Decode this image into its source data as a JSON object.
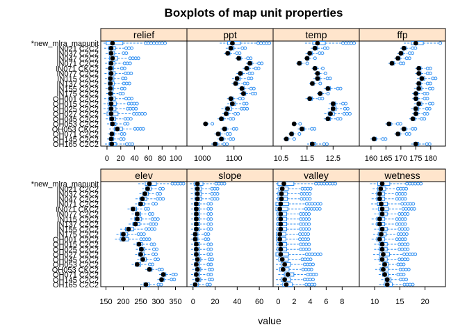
{
  "chart_data": {
    "type": "boxplot",
    "title": "Boxplots of map unit properties",
    "xlabel": "value",
    "colors": {
      "box": "#2b8cf0",
      "median": "#000000",
      "strip": "#ffe5cc",
      "frame": "#000000"
    },
    "categories": [
      "*new_mlra_mapunit",
      "IN021 C2C2",
      "IN037 C2C2",
      "IN047 C2C2",
      "IN071 C2C2",
      "IN071 CKC2",
      "IN077 C2C2",
      "IN115 C2C2",
      "IN137 C2C2",
      "IN155 C2C2",
      "IN175 C2C2",
      "OH001 C2C2",
      "OH015 C2C2",
      "OH025 C2C2",
      "OH027 C2C2",
      "OH045 C2C2",
      "OH053 C2C2",
      "OH053 CKC2",
      "OH071 C2C2",
      "OH145 C2C2",
      "OH165 C2C2"
    ],
    "panels": [
      {
        "name": "relief",
        "xlim": [
          -5,
          112
        ],
        "ticks": [
          0,
          20,
          40,
          60,
          80,
          100
        ],
        "medians": [
          8,
          6,
          6,
          8,
          6,
          5,
          6,
          5,
          5,
          5,
          5,
          6,
          6,
          6,
          6,
          7,
          8,
          15,
          7,
          6,
          7
        ],
        "spreads": [
          60,
          25,
          20,
          30,
          22,
          18,
          24,
          20,
          22,
          18,
          15,
          25,
          30,
          28,
          40,
          22,
          20,
          30,
          15,
          15,
          25
        ]
      },
      {
        "name": "ppt",
        "xlim": [
          960,
          1215
        ],
        "ticks": [
          1000,
          1100
        ],
        "medians": [
          1095,
          1090,
          1080,
          1115,
          1150,
          1140,
          1120,
          1110,
          1105,
          1125,
          1130,
          1090,
          1095,
          1080,
          1075,
          1060,
          1010,
          1070,
          1050,
          1060,
          1040
        ],
        "spreads": [
          100,
          40,
          30,
          30,
          30,
          30,
          30,
          40,
          30,
          30,
          30,
          30,
          40,
          50,
          30,
          30,
          20,
          30,
          30,
          30,
          30
        ]
      },
      {
        "name": "temp",
        "xlim": [
          10.3,
          13.4
        ],
        "ticks": [
          10.5,
          11.5,
          12.5
        ],
        "medians": [
          11.9,
          11.8,
          11.6,
          11.5,
          11.2,
          11.8,
          11.9,
          11.9,
          11.7,
          12.3,
          12.0,
          11.6,
          12.5,
          12.5,
          12.4,
          12.3,
          11.0,
          11.3,
          10.9,
          10.7,
          11.7
        ],
        "spreads": [
          1.2,
          0.4,
          0.4,
          0.3,
          0.3,
          0.3,
          0.3,
          0.4,
          0.3,
          0.4,
          0.3,
          0.4,
          0.4,
          0.5,
          0.6,
          0.4,
          0.2,
          0.4,
          0.3,
          0.3,
          0.5
        ]
      },
      {
        "name": "ffp",
        "xlim": [
          157,
          184
        ],
        "ticks": [
          160,
          165,
          170,
          175,
          180
        ],
        "medians": [
          175,
          171,
          170,
          169,
          167,
          176,
          176,
          177,
          176,
          176,
          175,
          175,
          176,
          175,
          175,
          174,
          166,
          171,
          169,
          161,
          175
        ],
        "spreads": [
          10,
          3,
          3,
          3,
          3,
          3,
          3,
          4,
          3,
          4,
          3,
          3,
          4,
          4,
          3,
          3,
          3,
          3,
          3,
          3,
          4
        ]
      },
      {
        "name": "elev",
        "xlim": [
          143,
          375
        ],
        "ticks": [
          150,
          200,
          250,
          300,
          350
        ],
        "medians": [
          275,
          270,
          262,
          255,
          250,
          228,
          240,
          240,
          235,
          215,
          200,
          200,
          245,
          252,
          250,
          256,
          240,
          275,
          315,
          310,
          265
        ],
        "spreads": [
          80,
          40,
          40,
          50,
          40,
          40,
          40,
          50,
          50,
          60,
          50,
          60,
          40,
          40,
          40,
          40,
          40,
          30,
          30,
          30,
          40
        ]
      },
      {
        "name": "slope",
        "xlim": [
          -3,
          70
        ],
        "ticks": [
          0,
          20,
          40,
          60
        ],
        "medians": [
          4,
          4,
          4,
          4,
          3,
          3,
          3,
          3,
          3,
          3,
          2,
          2,
          3,
          3,
          3,
          4,
          3,
          4,
          3,
          4,
          2
        ],
        "spreads": [
          20,
          15,
          15,
          15,
          12,
          12,
          12,
          12,
          12,
          12,
          10,
          10,
          12,
          12,
          12,
          12,
          12,
          12,
          12,
          12,
          12
        ]
      },
      {
        "name": "valley",
        "xlim": [
          -0.3,
          9.8
        ],
        "ticks": [
          0,
          2,
          4,
          6,
          8
        ],
        "medians": [
          0.7,
          0.5,
          0.4,
          0.4,
          0.3,
          0.2,
          0.3,
          0.3,
          0.3,
          0.3,
          0.2,
          0.2,
          0.3,
          0.3,
          0.3,
          0.5,
          0.8,
          0.6,
          1.2,
          0.8,
          1.0
        ],
        "spreads": [
          5,
          3,
          3,
          3,
          4,
          4,
          3,
          3,
          3,
          3,
          3,
          3,
          3,
          3,
          4,
          3,
          3,
          3,
          3,
          3,
          3
        ]
      },
      {
        "name": "wetness",
        "xlim": [
          7.5,
          23.5
        ],
        "ticks": [
          10,
          15,
          20
        ],
        "medians": [
          11.5,
          11.2,
          11.0,
          11.0,
          11.3,
          11.5,
          11.5,
          11.0,
          11.0,
          11.5,
          11.3,
          11.0,
          11.5,
          11.5,
          11.7,
          11.5,
          12.0,
          11.7,
          12.0,
          12.5,
          12.5
        ],
        "spreads": [
          6,
          4,
          4,
          4,
          5,
          5,
          4,
          4,
          4,
          4,
          4,
          4,
          4,
          4,
          5,
          4,
          3,
          4,
          3,
          3,
          4
        ]
      }
    ]
  }
}
